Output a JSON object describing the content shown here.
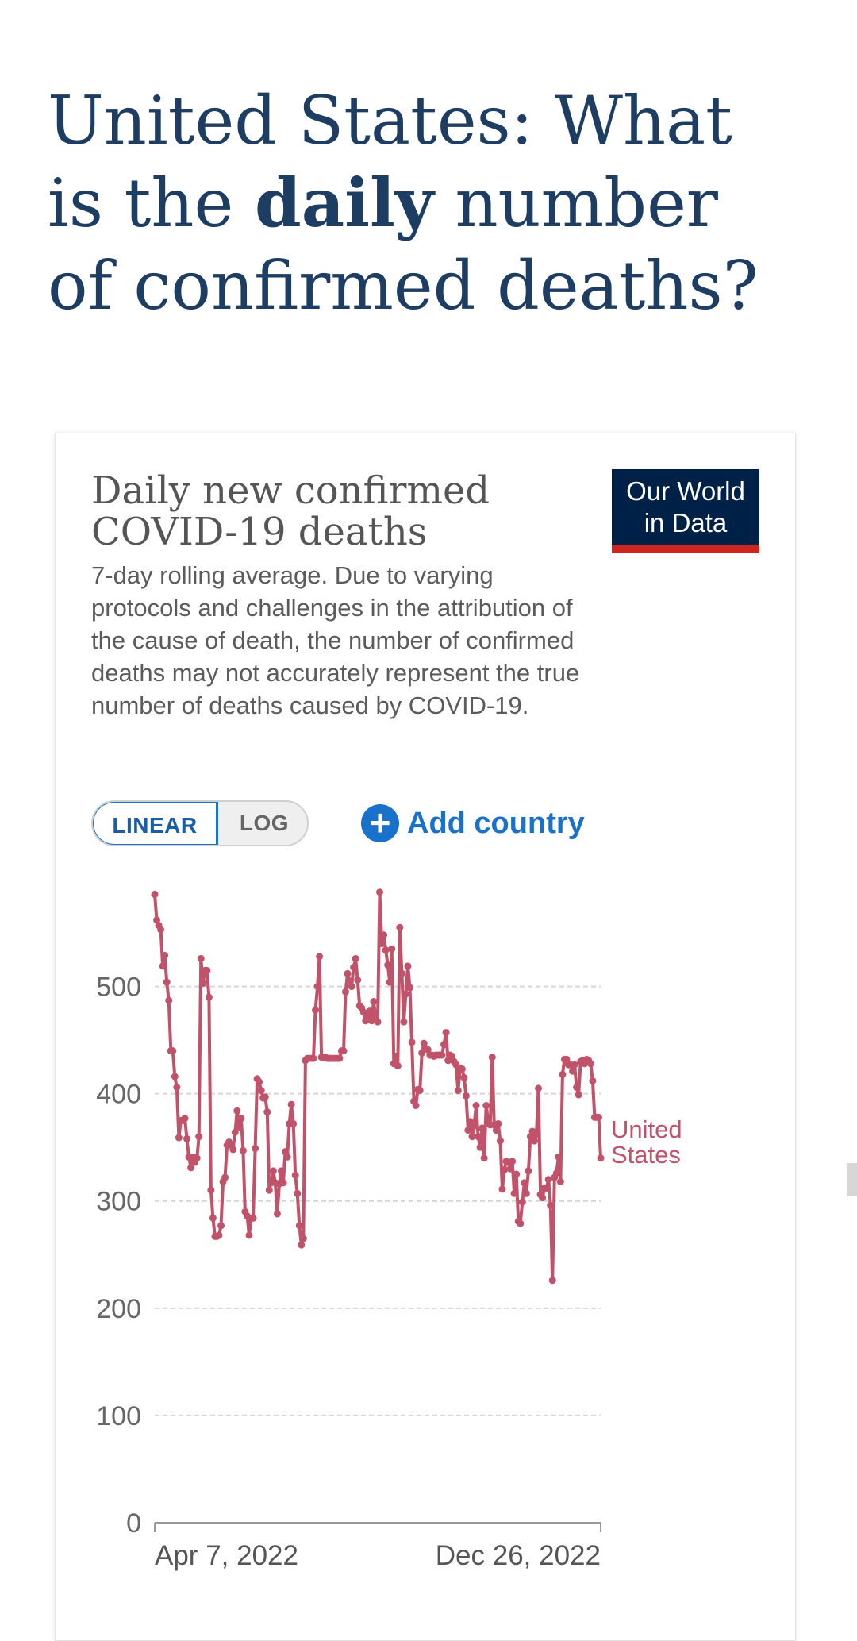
{
  "page": {
    "title_before": "United States: What is the ",
    "title_bold": "daily",
    "title_after": " number of confirmed deaths?"
  },
  "card": {
    "logo_line1": "Our World",
    "logo_line2": "in Data",
    "scale_linear": "LINEAR",
    "scale_log": "LOG",
    "add_country": "Add country",
    "add_icon": "+"
  },
  "colors": {
    "series": "#c0536a",
    "accent": "#1a71c9",
    "title": "#1d3d63"
  },
  "chart_data": {
    "type": "line",
    "title": "Daily new confirmed COVID-19 deaths",
    "subtitle": "7-day rolling average. Due to varying protocols and challenges in the attribution of the cause of death, the number of confirmed deaths may not accurately represent the true number of deaths caused by COVID-19.",
    "xlabel": "",
    "ylabel": "",
    "ylim": [
      0,
      590
    ],
    "yticks": [
      0,
      100,
      200,
      300,
      400,
      500
    ],
    "xticks": [
      "Apr 7, 2022",
      "Dec 26, 2022"
    ],
    "grid": true,
    "legend": "right-end-label",
    "series": [
      {
        "name": "United States",
        "values": [
          586,
          562,
          557,
          553,
          519,
          529,
          504,
          487,
          440,
          440,
          416,
          406,
          359,
          375,
          375,
          377,
          358,
          341,
          331,
          341,
          336,
          340,
          360,
          526,
          503,
          515,
          515,
          490,
          310,
          284,
          267,
          267,
          268,
          277,
          318,
          322,
          352,
          355,
          352,
          348,
          364,
          384,
          369,
          377,
          347,
          290,
          286,
          268,
          284,
          284,
          349,
          414,
          411,
          403,
          396,
          397,
          383,
          310,
          317,
          328,
          317,
          288,
          316,
          328,
          317,
          346,
          341,
          372,
          390,
          372,
          324,
          307,
          277,
          259,
          265,
          431,
          433,
          433,
          433,
          433,
          478,
          500,
          528,
          434,
          434,
          434,
          433,
          433,
          433,
          433,
          433,
          433,
          433,
          440,
          440,
          495,
          512,
          505,
          500,
          518,
          526,
          506,
          482,
          480,
          476,
          468,
          473,
          477,
          468,
          486,
          470,
          467,
          588,
          540,
          548,
          534,
          520,
          504,
          535,
          428,
          435,
          426,
          555,
          512,
          467,
          493,
          519,
          499,
          448,
          393,
          389,
          404,
          403,
          438,
          447,
          442,
          441,
          436,
          436,
          435,
          436,
          436,
          436,
          436,
          446,
          457,
          431,
          436,
          435,
          430,
          427,
          403,
          424,
          423,
          415,
          398,
          366,
          374,
          360,
          370,
          389,
          360,
          350,
          368,
          340,
          389,
          374,
          371,
          434,
          371,
          366,
          372,
          356,
          311,
          329,
          337,
          336,
          330,
          337,
          307,
          325,
          281,
          279,
          299,
          317,
          307,
          328,
          360,
          365,
          356,
          362,
          405,
          306,
          303,
          312,
          312,
          320,
          296,
          226,
          322,
          326,
          341,
          318,
          418,
          432,
          432,
          427,
          427,
          421,
          427,
          406,
          399,
          430,
          431,
          428,
          432,
          431,
          428,
          412,
          378,
          378,
          378,
          340
        ]
      }
    ]
  }
}
